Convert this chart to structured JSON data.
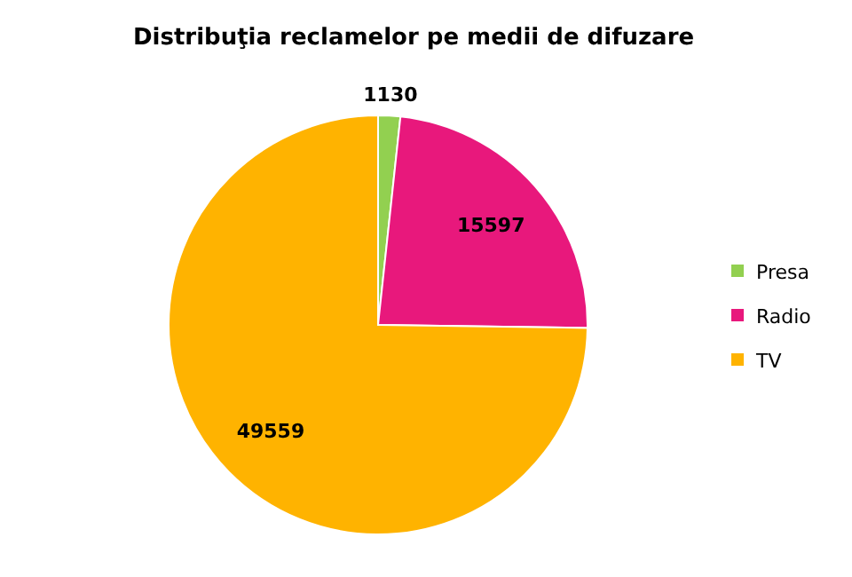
{
  "chart_data": {
    "type": "pie",
    "title": "Distribuţia reclamelor pe medii de difuzare",
    "categories": [
      "Presa",
      "Radio",
      "TV"
    ],
    "values": [
      1130,
      15597,
      49559
    ],
    "colors": [
      "#92d050",
      "#e8187c",
      "#ffb300"
    ],
    "data_labels": true,
    "legend": "right"
  }
}
